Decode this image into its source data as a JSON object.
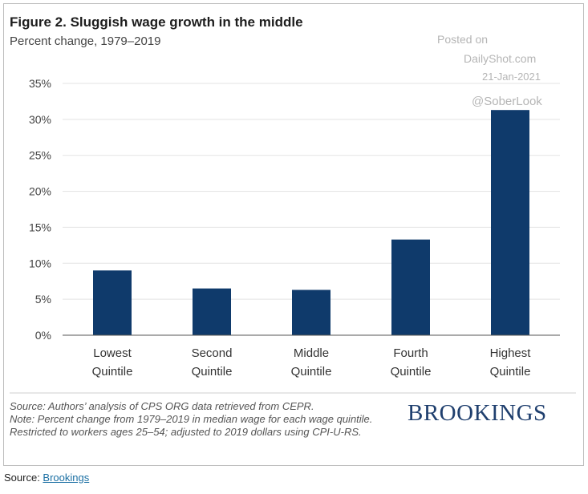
{
  "figure": {
    "title": "Figure 2. Sluggish wage growth in the middle",
    "subtitle": "Percent change, 1979–2019"
  },
  "watermark": {
    "line1": "Posted on",
    "line2": "DailyShot.com",
    "line3": "21-Jan-2021",
    "line4": "@SoberLook"
  },
  "notes": {
    "source": "Source: Authors’ analysis of CPS ORG data retrieved from CEPR.",
    "note": "Note: Percent change from 1979–2019 in median wage for each wage quintile. Restricted to workers ages 25–54; adjusted to 2019 dollars using CPI-U-RS."
  },
  "brand": "BROOKINGS",
  "page_source": {
    "prefix": "Source: ",
    "link_text": "Brookings"
  },
  "colors": {
    "bar": "#0f3a6b",
    "grid": "#e3e3e3",
    "axis": "#555555"
  },
  "chart_data": {
    "type": "bar",
    "categories": [
      [
        "Lowest",
        "Quintile"
      ],
      [
        "Second",
        "Quintile"
      ],
      [
        "Middle",
        "Quintile"
      ],
      [
        "Fourth",
        "Quintile"
      ],
      [
        "Highest",
        "Quintile"
      ]
    ],
    "values": [
      9.0,
      6.5,
      6.3,
      13.3,
      31.3
    ],
    "ylim": [
      0,
      35
    ],
    "yticks": [
      0,
      5,
      10,
      15,
      20,
      25,
      30,
      35
    ],
    "ytick_labels": [
      "0%",
      "5%",
      "10%",
      "15%",
      "20%",
      "25%",
      "30%",
      "35%"
    ],
    "grid": true
  }
}
